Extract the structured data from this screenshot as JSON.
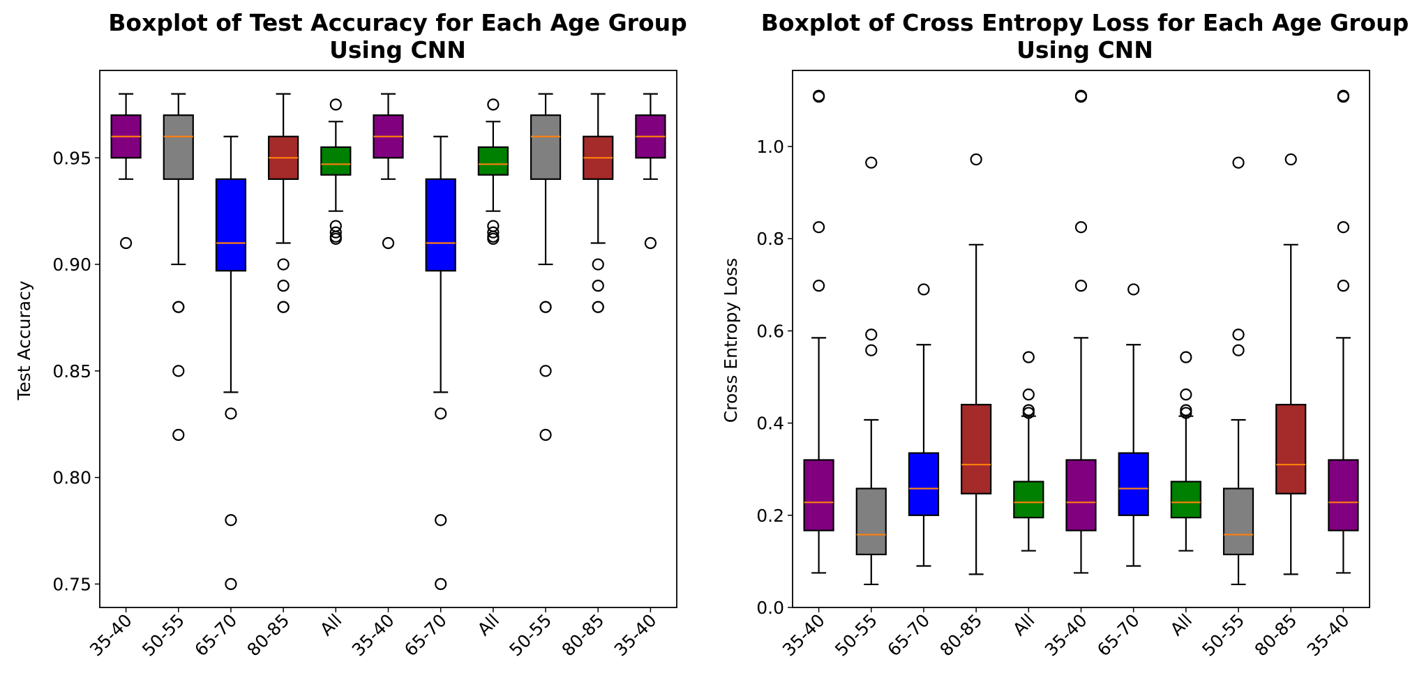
{
  "colors": {
    "35-40": "#800080",
    "50-55": "#808080",
    "65-70": "#0000ff",
    "80-85": "#a52a2a",
    "All": "#008000",
    "median": "#ff7f0e"
  },
  "chart_data": [
    {
      "type": "boxplot",
      "title_line1": "Boxplot of Test Accuracy for Each Age Group",
      "title_line2": "Using CNN",
      "xlabel": "",
      "ylabel": "Test Accuracy",
      "ylim": [
        0.739,
        0.991
      ],
      "yticks": [
        0.75,
        0.8,
        0.85,
        0.9,
        0.95
      ],
      "ytick_labels": [
        "0.75",
        "0.80",
        "0.85",
        "0.90",
        "0.95"
      ],
      "grid": false,
      "categories": [
        "35-40",
        "50-55",
        "65-70",
        "80-85",
        "All",
        "35-40",
        "65-70",
        "All",
        "50-55",
        "80-85",
        "35-40"
      ],
      "boxes": [
        {
          "group": "35-40",
          "whislo": 0.94,
          "q1": 0.95,
          "med": 0.96,
          "q3": 0.97,
          "whishi": 0.98,
          "fliers": [
            0.91
          ]
        },
        {
          "group": "50-55",
          "whislo": 0.9,
          "q1": 0.94,
          "med": 0.96,
          "q3": 0.97,
          "whishi": 0.98,
          "fliers": [
            0.88,
            0.88,
            0.85,
            0.82
          ]
        },
        {
          "group": "65-70",
          "whislo": 0.84,
          "q1": 0.897,
          "med": 0.91,
          "q3": 0.94,
          "whishi": 0.96,
          "fliers": [
            0.83,
            0.78,
            0.75
          ]
        },
        {
          "group": "80-85",
          "whislo": 0.91,
          "q1": 0.94,
          "med": 0.95,
          "q3": 0.96,
          "whishi": 0.98,
          "fliers": [
            0.9,
            0.89,
            0.88,
            0.88
          ]
        },
        {
          "group": "All",
          "whislo": 0.925,
          "q1": 0.942,
          "med": 0.947,
          "q3": 0.955,
          "whishi": 0.967,
          "fliers": [
            0.975,
            0.918,
            0.915,
            0.913,
            0.912
          ]
        },
        {
          "group": "35-40",
          "whislo": 0.94,
          "q1": 0.95,
          "med": 0.96,
          "q3": 0.97,
          "whishi": 0.98,
          "fliers": [
            0.91
          ]
        },
        {
          "group": "65-70",
          "whislo": 0.84,
          "q1": 0.897,
          "med": 0.91,
          "q3": 0.94,
          "whishi": 0.96,
          "fliers": [
            0.83,
            0.78,
            0.75
          ]
        },
        {
          "group": "All",
          "whislo": 0.925,
          "q1": 0.942,
          "med": 0.947,
          "q3": 0.955,
          "whishi": 0.967,
          "fliers": [
            0.975,
            0.918,
            0.915,
            0.913,
            0.912
          ]
        },
        {
          "group": "50-55",
          "whislo": 0.9,
          "q1": 0.94,
          "med": 0.96,
          "q3": 0.97,
          "whishi": 0.98,
          "fliers": [
            0.88,
            0.88,
            0.85,
            0.82
          ]
        },
        {
          "group": "80-85",
          "whislo": 0.91,
          "q1": 0.94,
          "med": 0.95,
          "q3": 0.96,
          "whishi": 0.98,
          "fliers": [
            0.9,
            0.89,
            0.88,
            0.88
          ]
        },
        {
          "group": "35-40",
          "whislo": 0.94,
          "q1": 0.95,
          "med": 0.96,
          "q3": 0.97,
          "whishi": 0.98,
          "fliers": [
            0.91
          ]
        }
      ]
    },
    {
      "type": "boxplot",
      "title_line1": "Boxplot of Cross Entropy Loss for Each Age Group",
      "title_line2": "Using CNN",
      "xlabel": "",
      "ylabel": "Cross Entropy Loss",
      "ylim": [
        0.0,
        1.165
      ],
      "yticks": [
        0.0,
        0.2,
        0.4,
        0.6,
        0.8,
        1.0
      ],
      "ytick_labels": [
        "0.0",
        "0.2",
        "0.4",
        "0.6",
        "0.8",
        "1.0"
      ],
      "grid": false,
      "categories": [
        "35-40",
        "50-55",
        "65-70",
        "80-85",
        "All",
        "35-40",
        "65-70",
        "All",
        "50-55",
        "80-85",
        "35-40"
      ],
      "boxes": [
        {
          "group": "35-40",
          "whislo": 0.075,
          "q1": 0.167,
          "med": 0.228,
          "q3": 0.32,
          "whishi": 0.585,
          "fliers": [
            1.11,
            1.108,
            0.825,
            0.698
          ]
        },
        {
          "group": "50-55",
          "whislo": 0.05,
          "q1": 0.115,
          "med": 0.158,
          "q3": 0.258,
          "whishi": 0.407,
          "fliers": [
            0.965,
            0.592,
            0.558
          ]
        },
        {
          "group": "65-70",
          "whislo": 0.09,
          "q1": 0.2,
          "med": 0.258,
          "q3": 0.335,
          "whishi": 0.57,
          "fliers": [
            0.69
          ]
        },
        {
          "group": "80-85",
          "whislo": 0.072,
          "q1": 0.247,
          "med": 0.31,
          "q3": 0.44,
          "whishi": 0.787,
          "fliers": [
            0.972
          ]
        },
        {
          "group": "All",
          "whislo": 0.123,
          "q1": 0.195,
          "med": 0.228,
          "q3": 0.273,
          "whishi": 0.415,
          "fliers": [
            0.543,
            0.462,
            0.428,
            0.422
          ]
        },
        {
          "group": "35-40",
          "whislo": 0.075,
          "q1": 0.167,
          "med": 0.228,
          "q3": 0.32,
          "whishi": 0.585,
          "fliers": [
            1.11,
            1.108,
            0.825,
            0.698
          ]
        },
        {
          "group": "65-70",
          "whislo": 0.09,
          "q1": 0.2,
          "med": 0.258,
          "q3": 0.335,
          "whishi": 0.57,
          "fliers": [
            0.69
          ]
        },
        {
          "group": "All",
          "whislo": 0.123,
          "q1": 0.195,
          "med": 0.228,
          "q3": 0.273,
          "whishi": 0.415,
          "fliers": [
            0.543,
            0.462,
            0.428,
            0.422
          ]
        },
        {
          "group": "50-55",
          "whislo": 0.05,
          "q1": 0.115,
          "med": 0.158,
          "q3": 0.258,
          "whishi": 0.407,
          "fliers": [
            0.965,
            0.592,
            0.558
          ]
        },
        {
          "group": "80-85",
          "whislo": 0.072,
          "q1": 0.247,
          "med": 0.31,
          "q3": 0.44,
          "whishi": 0.787,
          "fliers": [
            0.972
          ]
        },
        {
          "group": "35-40",
          "whislo": 0.075,
          "q1": 0.167,
          "med": 0.228,
          "q3": 0.32,
          "whishi": 0.585,
          "fliers": [
            1.11,
            1.108,
            0.825,
            0.698
          ]
        }
      ]
    }
  ]
}
